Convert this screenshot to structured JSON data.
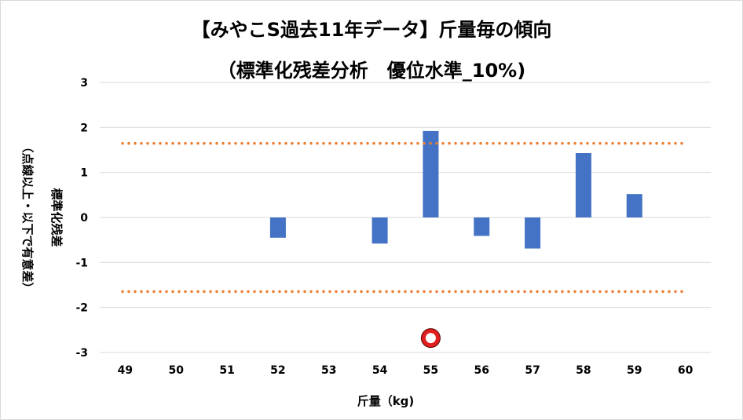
{
  "chart_data": {
    "type": "bar",
    "title": "【みやこS過去11年データ】斤量毎の傾向",
    "subtitle": "（標準化残差分析　優位水準_10%)",
    "xlabel": "斤量（kg)",
    "ylabel": "標準化残差",
    "ylabel_note": "（点線以上・以下で有意差）",
    "categories": [
      "49",
      "50",
      "51",
      "52",
      "53",
      "54",
      "55",
      "56",
      "57",
      "58",
      "59",
      "60"
    ],
    "values": [
      0,
      0,
      0,
      -0.45,
      0,
      -0.58,
      1.92,
      -0.41,
      -0.69,
      1.43,
      0.52,
      0
    ],
    "ylim": [
      -3,
      3
    ],
    "yticks": [
      3,
      2,
      1,
      0,
      -1,
      -2,
      -3
    ],
    "thresholds": [
      1.645,
      -1.645
    ],
    "highlight": {
      "x": "55",
      "y": -2.68
    },
    "grid": true,
    "colors": {
      "bar": "#4472c4",
      "threshold": "#ed7d31",
      "grid": "#d9d9d9",
      "marker_ring": "#e02020"
    }
  }
}
